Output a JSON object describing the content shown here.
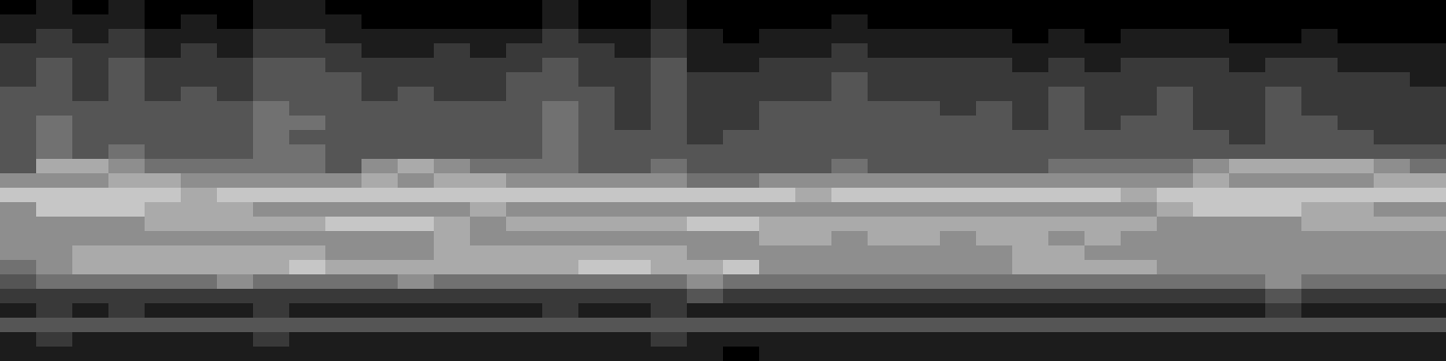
{
  "chart_data": {
    "type": "heatmap",
    "tick_labels": false,
    "color": "#ffffff",
    "zlim": [
      0,
      9
    ],
    "cells": [
      [
        0,
        1,
        0,
        1,
        0,
        0,
        0,
        1,
        1,
        0,
        0,
        0,
        0,
        0,
        0,
        1,
        0,
        0,
        1,
        0,
        0,
        0,
        0,
        0,
        0,
        0,
        0,
        0,
        0,
        0,
        0,
        0,
        0,
        0,
        0,
        0,
        0,
        0,
        0,
        0
      ],
      [
        1,
        1,
        1,
        1,
        0,
        1,
        0,
        1,
        1,
        1,
        0,
        0,
        0,
        0,
        0,
        1,
        0,
        0,
        1,
        0,
        0,
        0,
        0,
        1,
        0,
        0,
        0,
        0,
        0,
        0,
        0,
        0,
        0,
        0,
        0,
        0,
        0,
        0,
        0,
        0
      ],
      [
        1,
        2,
        1,
        2,
        1,
        1,
        1,
        2,
        2,
        1,
        1,
        1,
        1,
        1,
        1,
        2,
        1,
        1,
        2,
        1,
        0,
        1,
        1,
        1,
        1,
        1,
        1,
        1,
        0,
        1,
        0,
        1,
        1,
        1,
        0,
        0,
        1,
        0,
        0,
        0
      ],
      [
        2,
        2,
        2,
        2,
        1,
        2,
        1,
        2,
        2,
        2,
        1,
        1,
        2,
        1,
        2,
        2,
        2,
        1,
        2,
        1,
        1,
        1,
        1,
        2,
        1,
        1,
        1,
        1,
        1,
        1,
        1,
        1,
        1,
        1,
        1,
        1,
        1,
        1,
        1,
        1
      ],
      [
        2,
        3,
        2,
        3,
        2,
        2,
        2,
        3,
        3,
        2,
        2,
        2,
        2,
        2,
        2,
        3,
        2,
        2,
        3,
        1,
        1,
        2,
        2,
        2,
        2,
        2,
        2,
        2,
        1,
        2,
        1,
        2,
        2,
        2,
        1,
        2,
        2,
        1,
        1,
        1
      ],
      [
        2,
        3,
        2,
        3,
        2,
        2,
        2,
        3,
        3,
        3,
        2,
        2,
        2,
        2,
        3,
        3,
        2,
        2,
        3,
        2,
        2,
        2,
        2,
        3,
        2,
        2,
        2,
        2,
        2,
        2,
        2,
        2,
        2,
        2,
        2,
        2,
        2,
        2,
        2,
        1
      ],
      [
        3,
        3,
        2,
        3,
        2,
        3,
        2,
        3,
        3,
        3,
        2,
        3,
        2,
        2,
        3,
        3,
        3,
        2,
        3,
        2,
        2,
        2,
        2,
        3,
        2,
        2,
        2,
        2,
        2,
        3,
        2,
        2,
        3,
        2,
        2,
        3,
        2,
        2,
        2,
        2
      ],
      [
        3,
        3,
        3,
        3,
        3,
        3,
        3,
        4,
        3,
        3,
        3,
        3,
        3,
        3,
        3,
        4,
        3,
        2,
        3,
        2,
        2,
        3,
        3,
        3,
        3,
        3,
        2,
        3,
        2,
        3,
        2,
        2,
        3,
        2,
        2,
        3,
        2,
        2,
        2,
        2
      ],
      [
        3,
        4,
        3,
        3,
        3,
        3,
        3,
        4,
        4,
        3,
        3,
        3,
        3,
        3,
        3,
        4,
        3,
        2,
        3,
        2,
        2,
        3,
        3,
        3,
        3,
        3,
        3,
        3,
        2,
        3,
        2,
        3,
        3,
        2,
        2,
        3,
        3,
        2,
        2,
        2
      ],
      [
        3,
        4,
        3,
        3,
        3,
        3,
        3,
        4,
        3,
        3,
        3,
        3,
        3,
        3,
        3,
        4,
        3,
        3,
        3,
        2,
        3,
        3,
        3,
        3,
        3,
        3,
        3,
        3,
        3,
        3,
        3,
        3,
        3,
        3,
        2,
        3,
        3,
        3,
        2,
        2
      ],
      [
        3,
        4,
        3,
        4,
        3,
        3,
        3,
        4,
        4,
        3,
        3,
        3,
        3,
        3,
        3,
        4,
        3,
        3,
        3,
        3,
        3,
        3,
        3,
        3,
        3,
        3,
        3,
        3,
        3,
        3,
        3,
        3,
        3,
        3,
        3,
        3,
        3,
        3,
        3,
        3
      ],
      [
        3,
        6,
        6,
        5,
        4,
        4,
        4,
        4,
        4,
        3,
        5,
        6,
        5,
        4,
        4,
        4,
        3,
        3,
        4,
        3,
        3,
        3,
        3,
        4,
        3,
        3,
        3,
        3,
        3,
        4,
        4,
        4,
        4,
        5,
        6,
        6,
        6,
        6,
        5,
        4
      ],
      [
        5,
        5,
        5,
        6,
        6,
        5,
        5,
        5,
        5,
        5,
        6,
        5,
        6,
        6,
        5,
        5,
        5,
        5,
        5,
        4,
        4,
        5,
        5,
        5,
        5,
        5,
        5,
        5,
        5,
        5,
        5,
        5,
        5,
        6,
        5,
        5,
        5,
        5,
        6,
        6
      ],
      [
        7,
        7,
        7,
        7,
        7,
        6,
        7,
        7,
        7,
        7,
        7,
        7,
        7,
        7,
        7,
        7,
        7,
        7,
        7,
        7,
        7,
        7,
        6,
        7,
        7,
        7,
        7,
        7,
        7,
        7,
        7,
        6,
        7,
        7,
        7,
        7,
        7,
        7,
        7,
        7
      ],
      [
        5,
        7,
        7,
        7,
        6,
        6,
        6,
        5,
        5,
        5,
        5,
        5,
        5,
        6,
        5,
        5,
        5,
        5,
        5,
        5,
        5,
        5,
        5,
        5,
        5,
        5,
        5,
        5,
        5,
        5,
        5,
        5,
        6,
        7,
        7,
        7,
        6,
        6,
        5,
        5
      ],
      [
        5,
        5,
        5,
        5,
        6,
        6,
        6,
        6,
        6,
        7,
        7,
        7,
        6,
        5,
        6,
        6,
        6,
        6,
        6,
        7,
        7,
        6,
        6,
        6,
        6,
        6,
        6,
        6,
        6,
        6,
        6,
        6,
        5,
        5,
        5,
        5,
        6,
        6,
        6,
        6
      ],
      [
        5,
        5,
        5,
        5,
        5,
        5,
        5,
        5,
        5,
        5,
        5,
        5,
        6,
        5,
        5,
        5,
        5,
        5,
        5,
        5,
        5,
        6,
        6,
        5,
        6,
        6,
        5,
        6,
        6,
        5,
        6,
        5,
        5,
        5,
        5,
        5,
        5,
        5,
        5,
        5
      ],
      [
        5,
        5,
        6,
        6,
        6,
        6,
        6,
        6,
        6,
        5,
        5,
        5,
        6,
        6,
        6,
        6,
        6,
        6,
        6,
        5,
        5,
        5,
        5,
        5,
        5,
        5,
        5,
        5,
        6,
        6,
        5,
        5,
        5,
        5,
        5,
        5,
        5,
        5,
        5,
        5
      ],
      [
        4,
        5,
        6,
        6,
        6,
        6,
        6,
        6,
        7,
        6,
        6,
        6,
        6,
        6,
        6,
        6,
        7,
        7,
        6,
        6,
        7,
        5,
        5,
        5,
        5,
        5,
        5,
        5,
        6,
        6,
        6,
        6,
        5,
        5,
        5,
        5,
        5,
        5,
        5,
        5
      ],
      [
        3,
        4,
        4,
        4,
        4,
        4,
        5,
        4,
        4,
        4,
        4,
        5,
        4,
        4,
        4,
        4,
        4,
        4,
        4,
        5,
        4,
        4,
        4,
        4,
        4,
        4,
        4,
        4,
        4,
        4,
        4,
        4,
        4,
        4,
        4,
        5,
        4,
        4,
        4,
        4
      ],
      [
        2,
        2,
        2,
        2,
        2,
        2,
        2,
        2,
        2,
        2,
        2,
        2,
        2,
        2,
        2,
        2,
        2,
        2,
        2,
        3,
        2,
        2,
        2,
        2,
        2,
        2,
        2,
        2,
        2,
        2,
        2,
        2,
        2,
        2,
        2,
        3,
        2,
        2,
        2,
        2
      ],
      [
        1,
        2,
        1,
        2,
        1,
        1,
        1,
        2,
        1,
        1,
        1,
        1,
        1,
        1,
        1,
        2,
        1,
        1,
        2,
        1,
        1,
        1,
        1,
        1,
        1,
        1,
        1,
        1,
        1,
        1,
        1,
        1,
        1,
        1,
        1,
        2,
        1,
        1,
        1,
        1
      ],
      [
        3,
        3,
        3,
        3,
        3,
        3,
        3,
        3,
        3,
        3,
        3,
        3,
        3,
        3,
        3,
        3,
        3,
        3,
        3,
        3,
        3,
        3,
        3,
        3,
        3,
        3,
        3,
        3,
        3,
        3,
        3,
        3,
        3,
        3,
        3,
        3,
        3,
        3,
        3,
        3
      ],
      [
        1,
        2,
        1,
        1,
        1,
        1,
        1,
        2,
        1,
        1,
        1,
        1,
        1,
        1,
        1,
        1,
        1,
        1,
        2,
        1,
        1,
        1,
        1,
        1,
        1,
        1,
        1,
        1,
        1,
        1,
        1,
        1,
        1,
        1,
        1,
        1,
        1,
        1,
        1,
        1
      ],
      [
        1,
        1,
        1,
        1,
        1,
        1,
        1,
        1,
        1,
        1,
        1,
        1,
        1,
        1,
        1,
        1,
        1,
        1,
        1,
        1,
        0,
        1,
        1,
        1,
        1,
        1,
        1,
        1,
        1,
        1,
        1,
        1,
        1,
        1,
        1,
        1,
        1,
        1,
        1,
        1
      ]
    ]
  }
}
